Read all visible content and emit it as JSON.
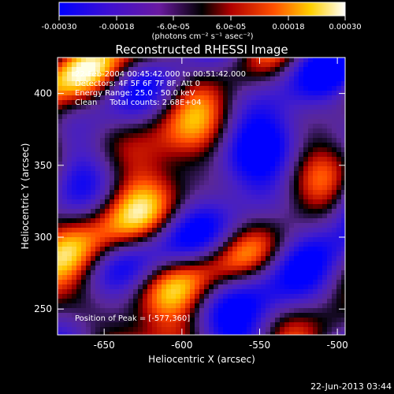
{
  "colorbar": {
    "ticks": [
      "-0.00030",
      "-0.00018",
      "-6.0e-05",
      "6.0e-05",
      "0.00018",
      "0.00030"
    ],
    "unit_text": "(photons cm⁻² s⁻¹ asec⁻²)",
    "range": [
      -0.0003,
      0.0003
    ]
  },
  "title": "Reconstructed RHESSI Image",
  "info": {
    "line1": "22-Feb-2004 00:45:42.000 to 00:51:42.000",
    "line2": "Detectors: 4F 5F 6F 7F 8F, Att 0",
    "line3": "Energy Range: 25.0 - 50.0 keV",
    "line4": "Clean     Total counts: 2.68E+04"
  },
  "peak_text": "Position of Peak = [-577,360]",
  "footer_date": "22-Jun-2013 03:44",
  "chart_data": {
    "type": "heatmap",
    "title": "Reconstructed RHESSI Image",
    "xlabel": "Heliocentric X (arcsec)",
    "ylabel": "Heliocentric Y (arcsec)",
    "xlim": [
      -680,
      -495
    ],
    "ylim": [
      232,
      425
    ],
    "xticks": [
      -650,
      -600,
      -550,
      -500
    ],
    "yticks": [
      250,
      300,
      350,
      400
    ],
    "colormap": "blue-purple-black-red-orange-yellow-white",
    "value_range": [
      -0.0003,
      0.0003
    ],
    "peak": [
      -577,
      360
    ]
  }
}
